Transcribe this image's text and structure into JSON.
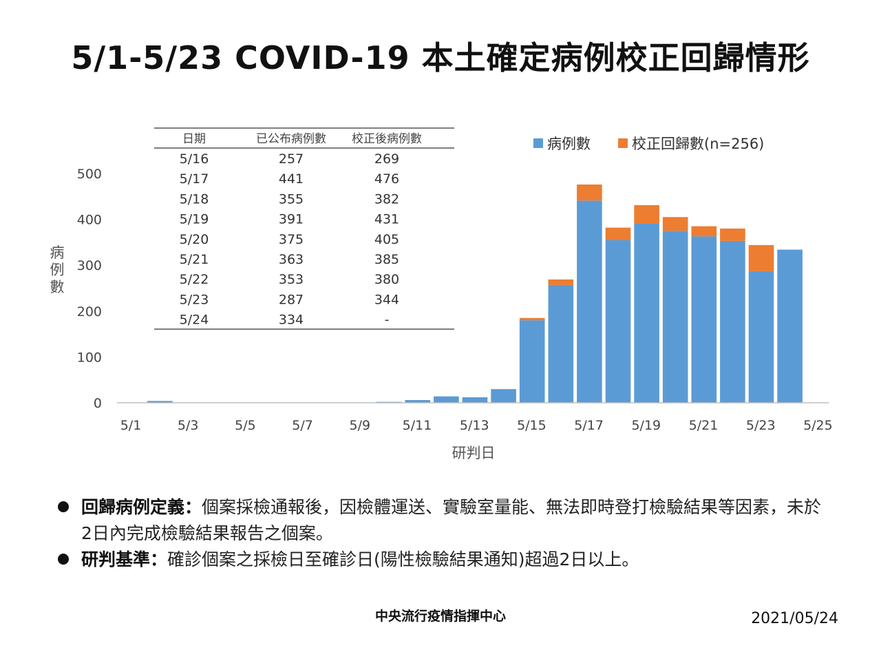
{
  "title": "5/1-5/23 COVID-19 本土確定病例校正回歸情形",
  "chart_data": {
    "type": "bar",
    "stacked": true,
    "title": "",
    "xlabel": "研判日",
    "ylabel": "病例數",
    "ylim": [
      0,
      500
    ],
    "yticks": [
      "0",
      "100",
      "200",
      "300",
      "400",
      "500"
    ],
    "xtick_labels": [
      "5/1",
      "5/3",
      "5/5",
      "5/7",
      "5/9",
      "5/11",
      "5/13",
      "5/15",
      "5/17",
      "5/19",
      "5/21",
      "5/23",
      "5/25"
    ],
    "categories": [
      "5/1",
      "5/2",
      "5/3",
      "5/4",
      "5/5",
      "5/6",
      "5/7",
      "5/8",
      "5/9",
      "5/10",
      "5/11",
      "5/12",
      "5/13",
      "5/14",
      "5/15",
      "5/16",
      "5/17",
      "5/18",
      "5/19",
      "5/20",
      "5/21",
      "5/22",
      "5/23",
      "5/24"
    ],
    "series": [
      {
        "name": "病例數",
        "color": "#5b9bd5",
        "values": [
          0,
          4,
          0,
          0,
          0,
          0,
          0,
          0,
          0,
          2,
          6,
          14,
          12,
          29,
          180,
          257,
          441,
          355,
          391,
          375,
          363,
          353,
          287,
          334
        ]
      },
      {
        "name": "校正回歸數(n=256)",
        "color": "#ed7d31",
        "values": [
          0,
          0,
          0,
          0,
          0,
          0,
          0,
          0,
          0,
          0,
          0,
          0,
          0,
          1,
          5,
          12,
          35,
          27,
          40,
          30,
          22,
          27,
          57,
          0
        ]
      }
    ],
    "legend_position": "top-right",
    "grid": false
  },
  "table": {
    "headers": [
      "日期",
      "已公布病例數",
      "校正後病例數"
    ],
    "rows": [
      [
        "5/16",
        "257",
        "269"
      ],
      [
        "5/17",
        "441",
        "476"
      ],
      [
        "5/18",
        "355",
        "382"
      ],
      [
        "5/19",
        "391",
        "431"
      ],
      [
        "5/20",
        "375",
        "405"
      ],
      [
        "5/21",
        "363",
        "385"
      ],
      [
        "5/22",
        "353",
        "380"
      ],
      [
        "5/23",
        "287",
        "344"
      ],
      [
        "5/24",
        "334",
        "-"
      ]
    ]
  },
  "notes": [
    {
      "label": "回歸病例定義：",
      "text": "個案採檢通報後，因檢體運送、實驗室量能、無法即時登打檢驗結果等因素，未於2日內完成檢驗結果報告之個案。"
    },
    {
      "label": "研判基準：",
      "text": "確診個案之採檢日至確診日(陽性檢驗結果通知)超過2日以上。"
    }
  ],
  "footer": {
    "org": "中央流行疫情指揮中心",
    "date": "2021/05/24"
  }
}
